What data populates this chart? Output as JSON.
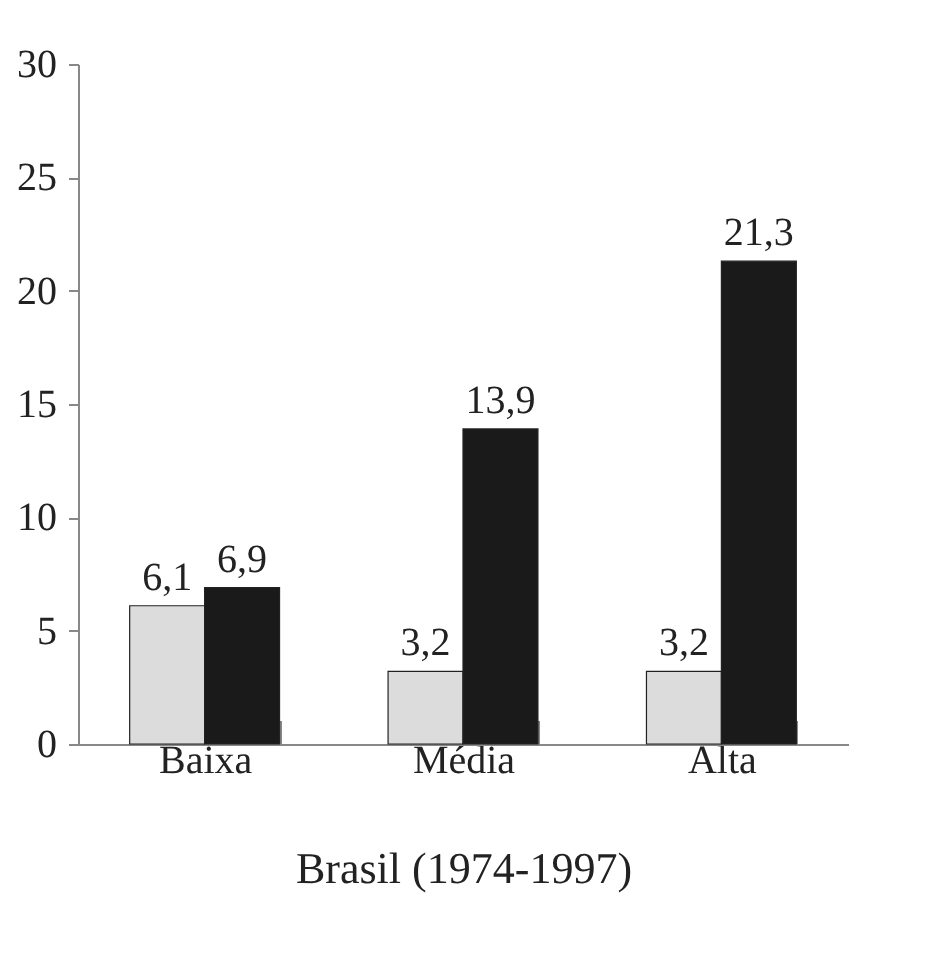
{
  "chart_data": {
    "type": "bar",
    "xlabel": "Brasil (1974-1997)",
    "categories": [
      "Baixa",
      "Média",
      "Alta"
    ],
    "series": [
      {
        "color": "#dcdcdc",
        "values": [
          6.1,
          3.2,
          3.2
        ],
        "value_labels": [
          "6,1",
          "3,2",
          "3,2"
        ]
      },
      {
        "color": "#1a1a1a",
        "values": [
          6.9,
          13.9,
          21.3
        ],
        "value_labels": [
          "6,9",
          "13,9",
          "21,3"
        ]
      }
    ],
    "ylim": [
      0,
      30
    ],
    "yticks": [
      0,
      5,
      10,
      15,
      20,
      25,
      30
    ],
    "grid": false,
    "legend": false
  }
}
